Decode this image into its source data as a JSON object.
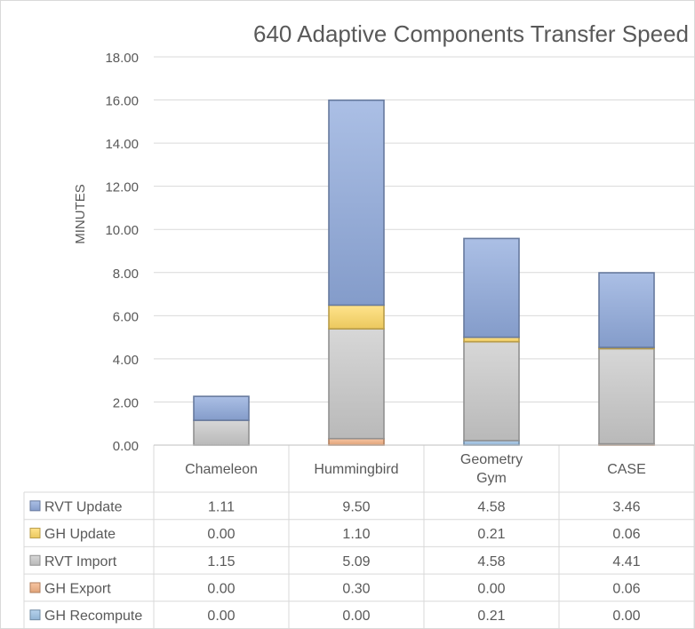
{
  "chart_data": {
    "type": "bar",
    "stacked": true,
    "title": "640 Adaptive Components Transfer Speed",
    "xlabel": "",
    "ylabel": "MINUTES",
    "ylim": [
      0,
      18
    ],
    "ytick_step": 2,
    "ytick_labels": [
      "0.00",
      "2.00",
      "4.00",
      "6.00",
      "8.00",
      "10.00",
      "12.00",
      "14.00",
      "16.00",
      "18.00"
    ],
    "grid": true,
    "legend": "data-table",
    "categories": [
      "Chameleon",
      "Hummingbird",
      "Geometry Gym",
      "CASE"
    ],
    "series": [
      {
        "name": "GH Recompute",
        "color": "#9dc3e6",
        "values": [
          0.0,
          0.0,
          0.21,
          0.0
        ],
        "labels": [
          "0.00",
          "0.00",
          "0.21",
          "0.00"
        ]
      },
      {
        "name": "GH Export",
        "color": "#f4b183",
        "values": [
          0.0,
          0.3,
          0.0,
          0.06
        ],
        "labels": [
          "0.00",
          "0.30",
          "0.00",
          "0.06"
        ]
      },
      {
        "name": "RVT Import",
        "color": "#c9c9c9",
        "values": [
          1.15,
          5.09,
          4.58,
          4.41
        ],
        "labels": [
          "1.15",
          "5.09",
          "4.58",
          "4.41"
        ]
      },
      {
        "name": "GH Update",
        "color": "#ffd966",
        "values": [
          0.0,
          1.1,
          0.21,
          0.06
        ],
        "labels": [
          "0.00",
          "1.10",
          "0.21",
          "0.06"
        ]
      },
      {
        "name": "RVT Update",
        "color": "#8faadc",
        "values": [
          1.11,
          9.5,
          4.58,
          3.46
        ],
        "labels": [
          "1.11",
          "9.50",
          "4.58",
          "3.46"
        ]
      }
    ],
    "table_order": [
      "RVT Update",
      "GH Update",
      "RVT Import",
      "GH Export",
      "GH Recompute"
    ]
  }
}
